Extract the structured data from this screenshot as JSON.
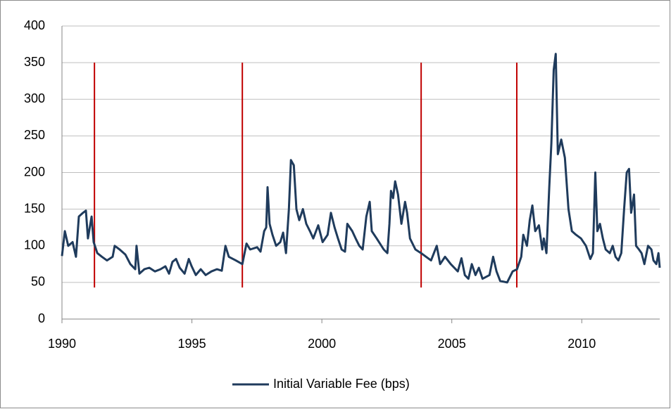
{
  "chart_data": {
    "type": "line",
    "x": [
      1990.0,
      1990.11,
      1990.24,
      1990.41,
      1990.54,
      1990.65,
      1990.81,
      1990.92,
      1991.0,
      1991.14,
      1991.22,
      1991.36,
      1991.54,
      1991.73,
      1991.95,
      1992.03,
      1992.22,
      1992.44,
      1992.63,
      1992.82,
      1992.87,
      1992.98,
      1993.17,
      1993.36,
      1993.58,
      1993.79,
      1993.98,
      1994.12,
      1994.25,
      1994.39,
      1994.53,
      1994.72,
      1994.88,
      1994.99,
      1995.15,
      1995.34,
      1995.53,
      1995.75,
      1995.96,
      1996.15,
      1996.29,
      1996.42,
      1996.69,
      1996.94,
      1997.1,
      1997.24,
      1997.51,
      1997.64,
      1997.78,
      1997.86,
      1997.91,
      1997.99,
      1998.1,
      1998.24,
      1998.4,
      1998.51,
      1998.62,
      1998.73,
      1998.81,
      1998.92,
      1999.02,
      1999.13,
      1999.27,
      1999.4,
      1999.54,
      1999.67,
      1999.86,
      2000.03,
      2000.22,
      2000.35,
      2000.49,
      2000.62,
      2000.76,
      2000.89,
      2000.98,
      2001.17,
      2001.3,
      2001.44,
      2001.57,
      2001.71,
      2001.84,
      2001.92,
      2002.11,
      2002.38,
      2002.52,
      2002.6,
      2002.66,
      2002.74,
      2002.82,
      2002.93,
      2003.06,
      2003.2,
      2003.28,
      2003.39,
      2003.6,
      2003.82,
      2004.01,
      2004.2,
      2004.42,
      2004.55,
      2004.74,
      2004.96,
      2005.23,
      2005.37,
      2005.5,
      2005.64,
      2005.77,
      2005.91,
      2006.04,
      2006.18,
      2006.45,
      2006.59,
      2006.72,
      2006.86,
      2007.13,
      2007.34,
      2007.51,
      2007.67,
      2007.75,
      2007.89,
      2008.0,
      2008.1,
      2008.21,
      2008.35,
      2008.48,
      2008.54,
      2008.64,
      2008.75,
      2008.83,
      2008.92,
      2009.0,
      2009.08,
      2009.21,
      2009.35,
      2009.49,
      2009.62,
      2009.78,
      2009.97,
      2010.16,
      2010.33,
      2010.43,
      2010.52,
      2010.6,
      2010.7,
      2010.81,
      2010.92,
      2011.08,
      2011.19,
      2011.3,
      2011.41,
      2011.52,
      2011.63,
      2011.73,
      2011.82,
      2011.9,
      2012.01,
      2012.09,
      2012.2,
      2012.3,
      2012.41,
      2012.55,
      2012.68,
      2012.76,
      2012.87,
      2012.95,
      2013.0
    ],
    "series": [
      {
        "name": "Initial Variable Fee (bps)",
        "color": "#1f3b5c",
        "values": [
          86,
          120,
          100,
          105,
          85,
          140,
          145,
          148,
          110,
          140,
          105,
          90,
          85,
          80,
          85,
          100,
          95,
          88,
          75,
          68,
          100,
          62,
          68,
          70,
          65,
          68,
          72,
          62,
          78,
          82,
          70,
          62,
          82,
          72,
          60,
          68,
          60,
          65,
          68,
          66,
          100,
          85,
          80,
          75,
          103,
          95,
          98,
          92,
          120,
          125,
          180,
          130,
          115,
          100,
          105,
          118,
          90,
          150,
          217,
          210,
          150,
          135,
          150,
          130,
          120,
          110,
          128,
          105,
          115,
          145,
          125,
          110,
          95,
          92,
          130,
          120,
          110,
          100,
          95,
          140,
          160,
          120,
          110,
          95,
          90,
          130,
          175,
          165,
          188,
          170,
          130,
          160,
          145,
          110,
          95,
          90,
          85,
          80,
          100,
          75,
          85,
          75,
          65,
          83,
          60,
          55,
          75,
          60,
          70,
          55,
          60,
          85,
          65,
          52,
          50,
          65,
          68,
          85,
          115,
          100,
          135,
          155,
          120,
          128,
          95,
          110,
          90,
          180,
          240,
          340,
          362,
          225,
          245,
          220,
          150,
          120,
          115,
          110,
          100,
          82,
          90,
          200,
          120,
          130,
          110,
          95,
          90,
          100,
          85,
          80,
          90,
          150,
          200,
          205,
          145,
          170,
          100,
          95,
          90,
          75,
          100,
          95,
          80,
          75,
          90,
          70
        ]
      }
    ],
    "xlim": [
      1990,
      2013
    ],
    "xticks": [
      1990,
      1995,
      2000,
      2005,
      2010
    ],
    "ylim": [
      0,
      400
    ],
    "yticks": [
      0,
      50,
      100,
      150,
      200,
      250,
      300,
      350,
      400
    ],
    "grid": true,
    "legend": "bottom",
    "vertical_lines": {
      "x": [
        1991.25,
        1996.94,
        2003.82,
        2007.5
      ],
      "from": 43,
      "to": 350,
      "color": "#c00000"
    }
  }
}
